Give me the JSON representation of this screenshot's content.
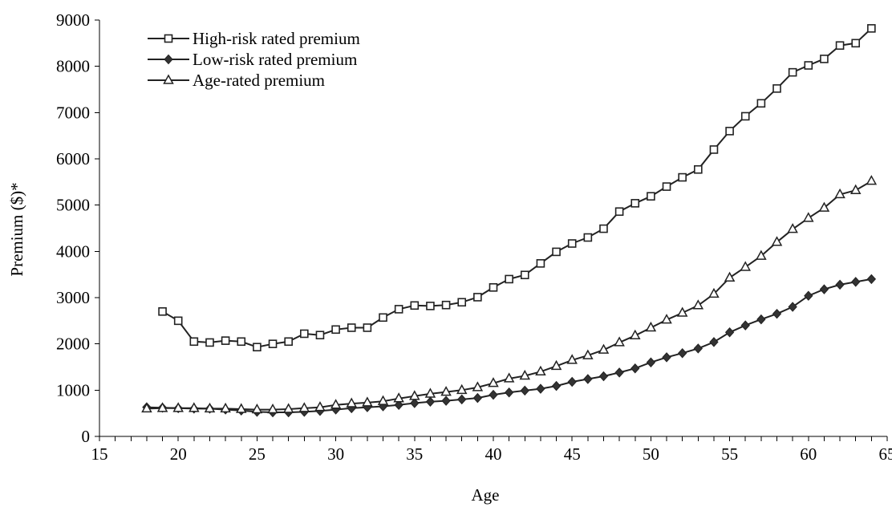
{
  "chart_data": {
    "type": "line",
    "title": "",
    "xlabel": "Age",
    "ylabel": "Premium ($)*",
    "xlim": [
      15,
      65
    ],
    "ylim": [
      0,
      9000
    ],
    "x_major_ticks": [
      15,
      20,
      25,
      30,
      35,
      40,
      45,
      50,
      55,
      60,
      65
    ],
    "x_minor_step": 1,
    "y_ticks": [
      0,
      1000,
      2000,
      3000,
      4000,
      5000,
      6000,
      7000,
      8000,
      9000
    ],
    "grid": false,
    "legend_position": "top-left",
    "series": [
      {
        "name": "High-risk rated premium",
        "marker": "square",
        "x": [
          19,
          20,
          21,
          22,
          23,
          24,
          25,
          26,
          27,
          28,
          29,
          30,
          31,
          32,
          33,
          34,
          35,
          36,
          37,
          38,
          39,
          40,
          41,
          42,
          43,
          44,
          45,
          46,
          47,
          48,
          49,
          50,
          51,
          52,
          53,
          54,
          55,
          56,
          57,
          58,
          59,
          60,
          61,
          62,
          63,
          64
        ],
        "values": [
          2700,
          2500,
          2050,
          2030,
          2070,
          2050,
          1930,
          2000,
          2050,
          2220,
          2190,
          2310,
          2350,
          2350,
          2570,
          2750,
          2830,
          2820,
          2840,
          2900,
          3010,
          3220,
          3400,
          3490,
          3740,
          3990,
          4170,
          4300,
          4490,
          4860,
          5040,
          5190,
          5400,
          5600,
          5770,
          6200,
          6600,
          6920,
          7200,
          7520,
          7870,
          8020,
          8160,
          8450,
          8500,
          8820
        ]
      },
      {
        "name": "Low-risk rated premium",
        "marker": "diamond",
        "x": [
          18,
          19,
          20,
          21,
          22,
          23,
          24,
          25,
          26,
          27,
          28,
          29,
          30,
          31,
          32,
          33,
          34,
          35,
          36,
          37,
          38,
          39,
          40,
          41,
          42,
          43,
          44,
          45,
          46,
          47,
          48,
          49,
          50,
          51,
          52,
          53,
          54,
          55,
          56,
          57,
          58,
          59,
          60,
          61,
          62,
          63,
          64
        ],
        "values": [
          630,
          620,
          610,
          600,
          600,
          580,
          560,
          530,
          520,
          520,
          530,
          550,
          580,
          610,
          630,
          650,
          680,
          720,
          750,
          770,
          800,
          830,
          900,
          950,
          990,
          1030,
          1090,
          1180,
          1240,
          1300,
          1380,
          1470,
          1600,
          1710,
          1800,
          1900,
          2040,
          2250,
          2400,
          2530,
          2650,
          2800,
          3040,
          3180,
          3280,
          3340,
          3400
        ]
      },
      {
        "name": "Age-rated premium",
        "marker": "triangle",
        "x": [
          18,
          19,
          20,
          21,
          22,
          23,
          24,
          25,
          26,
          27,
          28,
          29,
          30,
          31,
          32,
          33,
          34,
          35,
          36,
          37,
          38,
          39,
          40,
          41,
          42,
          43,
          44,
          45,
          46,
          47,
          48,
          49,
          50,
          51,
          52,
          53,
          54,
          55,
          56,
          57,
          58,
          59,
          60,
          61,
          62,
          63,
          64
        ],
        "values": [
          600,
          610,
          610,
          610,
          600,
          600,
          590,
          580,
          580,
          590,
          610,
          630,
          680,
          710,
          730,
          760,
          820,
          870,
          920,
          960,
          1000,
          1060,
          1150,
          1250,
          1310,
          1400,
          1520,
          1650,
          1750,
          1870,
          2030,
          2180,
          2350,
          2520,
          2670,
          2830,
          3080,
          3430,
          3660,
          3900,
          4200,
          4480,
          4720,
          4940,
          5230,
          5320,
          5520
        ]
      }
    ]
  }
}
